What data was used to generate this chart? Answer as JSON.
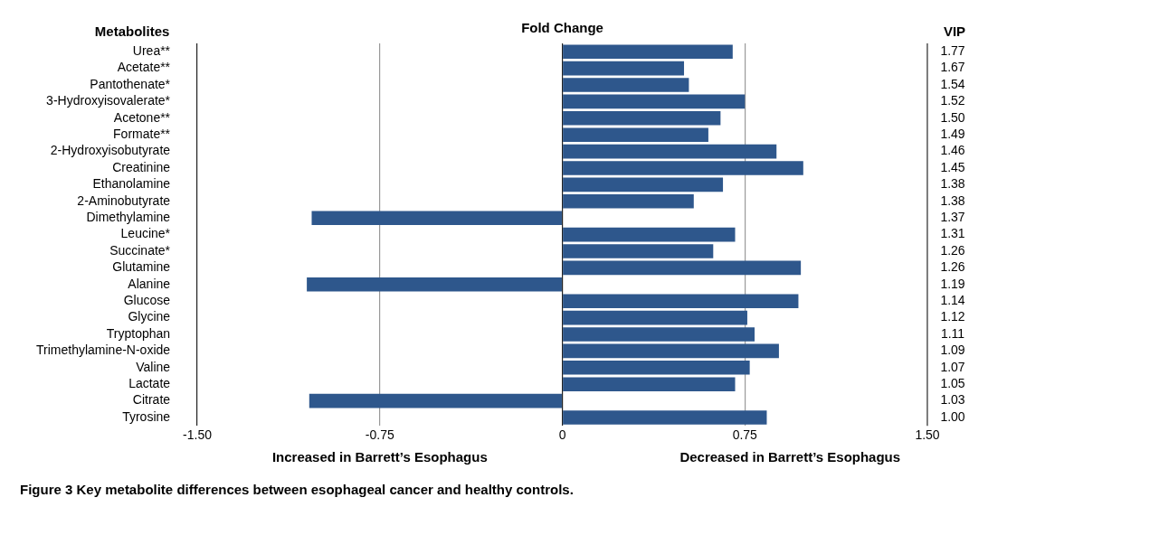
{
  "chart_data": {
    "type": "bar",
    "orientation": "horizontal",
    "title": "Fold Change",
    "ylabel": "Metabolites",
    "categories": [
      "Urea**",
      "Acetate**",
      "Pantothenate*",
      "3-Hydroxyisovalerate*",
      "Acetone**",
      "Formate**",
      "2-Hydroxyisobutyrate",
      "Creatinine",
      "Ethanolamine",
      "2-Aminobutyrate",
      "Dimethylamine",
      "Leucine*",
      "Succinate*",
      "Glutamine",
      "Alanine",
      "Glucose",
      "Glycine",
      "Tryptophan",
      "Trimethylamine-N-oxide",
      "Valine",
      "Lactate",
      "Citrate",
      "Tyrosine"
    ],
    "values": [
      0.7,
      0.5,
      0.52,
      0.75,
      0.65,
      0.6,
      0.88,
      0.99,
      0.66,
      0.54,
      -1.03,
      0.71,
      0.62,
      0.98,
      -1.05,
      0.97,
      0.76,
      0.79,
      0.89,
      0.77,
      0.71,
      -1.04,
      0.84
    ],
    "color": "#2e578c",
    "xlim": [
      -1.5,
      1.5
    ],
    "xticks": [
      {
        "value": -1.5,
        "label": "-1.50"
      },
      {
        "value": -0.75,
        "label": "-0.75"
      },
      0,
      0.75,
      {
        "value": 1.5,
        "label": "1.50"
      }
    ],
    "grid": "x",
    "legend": false,
    "annotations": [
      "Increased in Barrett’s Esophagus",
      "Decreased in Barrett’s Esophagus",
      "VIP",
      "Figure 3 Key metabolite differences between esophageal cancer and healthy controls.",
      "1.77",
      "1.67",
      "1.54",
      "1.52",
      "1.50",
      "1.49",
      "1.46",
      "1.45",
      "1.38",
      "1.38",
      "1.37",
      "1.31",
      "1.26",
      "1.26",
      "1.19",
      "1.14",
      "1.12",
      "1.11",
      "1.09",
      "1.07",
      "1.05",
      "1.03",
      "1.00"
    ]
  }
}
